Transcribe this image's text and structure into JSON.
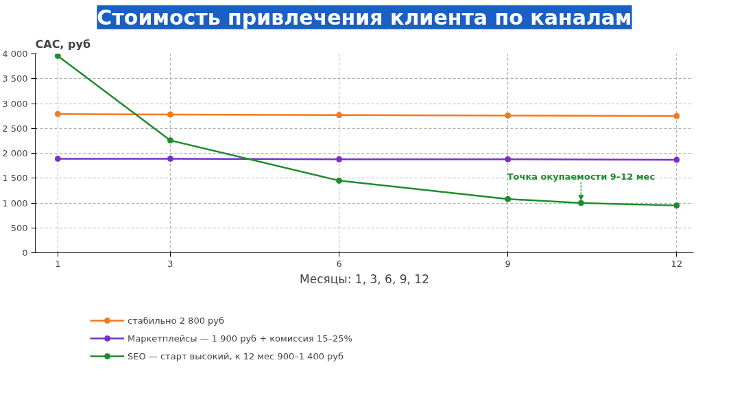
{
  "chart_data": {
    "type": "line",
    "title": "Стоимость привлечения клиента по каналам",
    "xlabel": "Месяцы: 1, 3, 6, 9, 12",
    "ylabel": "CAC, руб",
    "x": [
      1,
      3,
      6,
      9,
      12
    ],
    "series": [
      {
        "name": "стабильно 2 800 руб",
        "color": "#f47920",
        "values": [
          2790,
          2780,
          2770,
          2760,
          2750
        ]
      },
      {
        "name": "Маркетплейсы — 1 900 руб + комиссия 15–25%",
        "color": "#7b2fc9",
        "values": [
          1890,
          1890,
          1880,
          1880,
          1870
        ]
      },
      {
        "name": "SEO — старт высокий, к 12 мес 900–1 400 руб",
        "color": "#1e8c2e",
        "x": [
          1,
          3,
          6,
          9,
          10.3,
          12
        ],
        "values": [
          3960,
          2260,
          1450,
          1080,
          1000,
          950
        ]
      }
    ],
    "annotations": [
      {
        "text": "Точка окупаемости 9–12 мес",
        "x": 10.3,
        "y": 1000
      }
    ],
    "xlim": [
      0.6,
      12.3
    ],
    "xticks": [
      1,
      3,
      6,
      9,
      12
    ],
    "ylim": [
      0,
      4000
    ],
    "yticks": [
      0,
      500,
      {
        "value": 1000,
        "label": "1 000"
      },
      {
        "value": 1500,
        "label": "1 500"
      },
      {
        "value": 2000,
        "label": "2 000"
      },
      {
        "value": 2500,
        "label": "2 500"
      },
      {
        "value": 3000,
        "label": "3 000"
      },
      {
        "value": 3500,
        "label": "3 500"
      },
      {
        "value": 4000,
        "label": "4 000"
      }
    ],
    "grid": true,
    "legend": "bottom",
    "marker": "circle",
    "line_style": "solid"
  }
}
